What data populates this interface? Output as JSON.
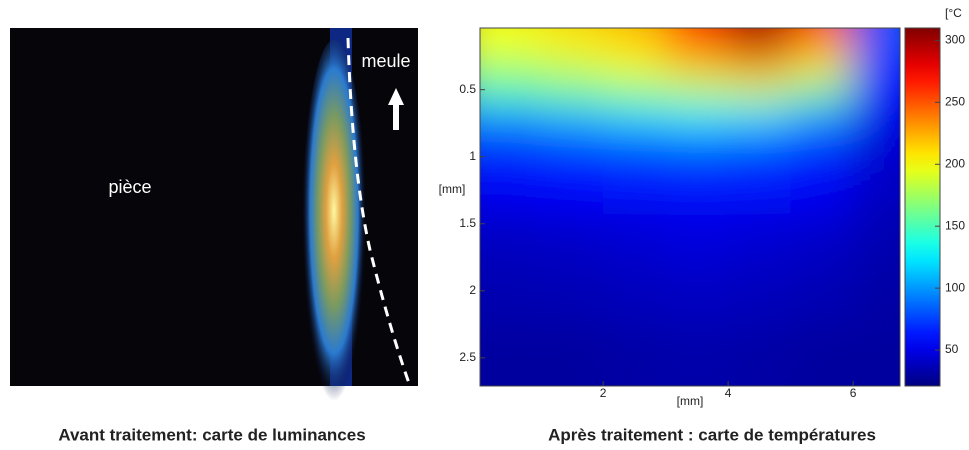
{
  "left_panel": {
    "label_piece": "pièce",
    "label_meule": "meule",
    "caption": "Avant traitement: carte de luminances"
  },
  "chart_data": {
    "type": "heatmap",
    "caption": "Après traitement : carte de températures",
    "xlabel": "[mm]",
    "ylabel": "[mm]",
    "colorbar_label": "[°C",
    "xlim": [
      0.03,
      6.75
    ],
    "ylim": [
      0.04,
      2.71
    ],
    "y_inverted": true,
    "xticks": [
      2,
      4,
      6
    ],
    "yticks": [
      0.5,
      1,
      1.5,
      2,
      2.5
    ],
    "clim": [
      21,
      310
    ],
    "cticks": [
      50,
      100,
      150,
      200,
      250,
      300
    ],
    "colormap": "jet",
    "x": [
      0.5,
      1.5,
      2.5,
      3.5,
      4.5,
      5.5,
      6.5
    ],
    "y": [
      0.1,
      0.3,
      0.5,
      0.7,
      0.9,
      1.2,
      1.6,
      2.0,
      2.5
    ],
    "z": [
      [
        200,
        210,
        220,
        260,
        300,
        250,
        80
      ],
      [
        180,
        190,
        200,
        220,
        240,
        210,
        70
      ],
      [
        150,
        160,
        170,
        180,
        185,
        160,
        60
      ],
      [
        100,
        110,
        120,
        125,
        120,
        100,
        50
      ],
      [
        70,
        75,
        80,
        85,
        80,
        70,
        45
      ],
      [
        55,
        58,
        60,
        62,
        60,
        55,
        40
      ],
      [
        40,
        42,
        45,
        48,
        45,
        42,
        35
      ],
      [
        35,
        36,
        38,
        40,
        38,
        36,
        32
      ],
      [
        30,
        30,
        32,
        33,
        32,
        30,
        30
      ]
    ]
  }
}
